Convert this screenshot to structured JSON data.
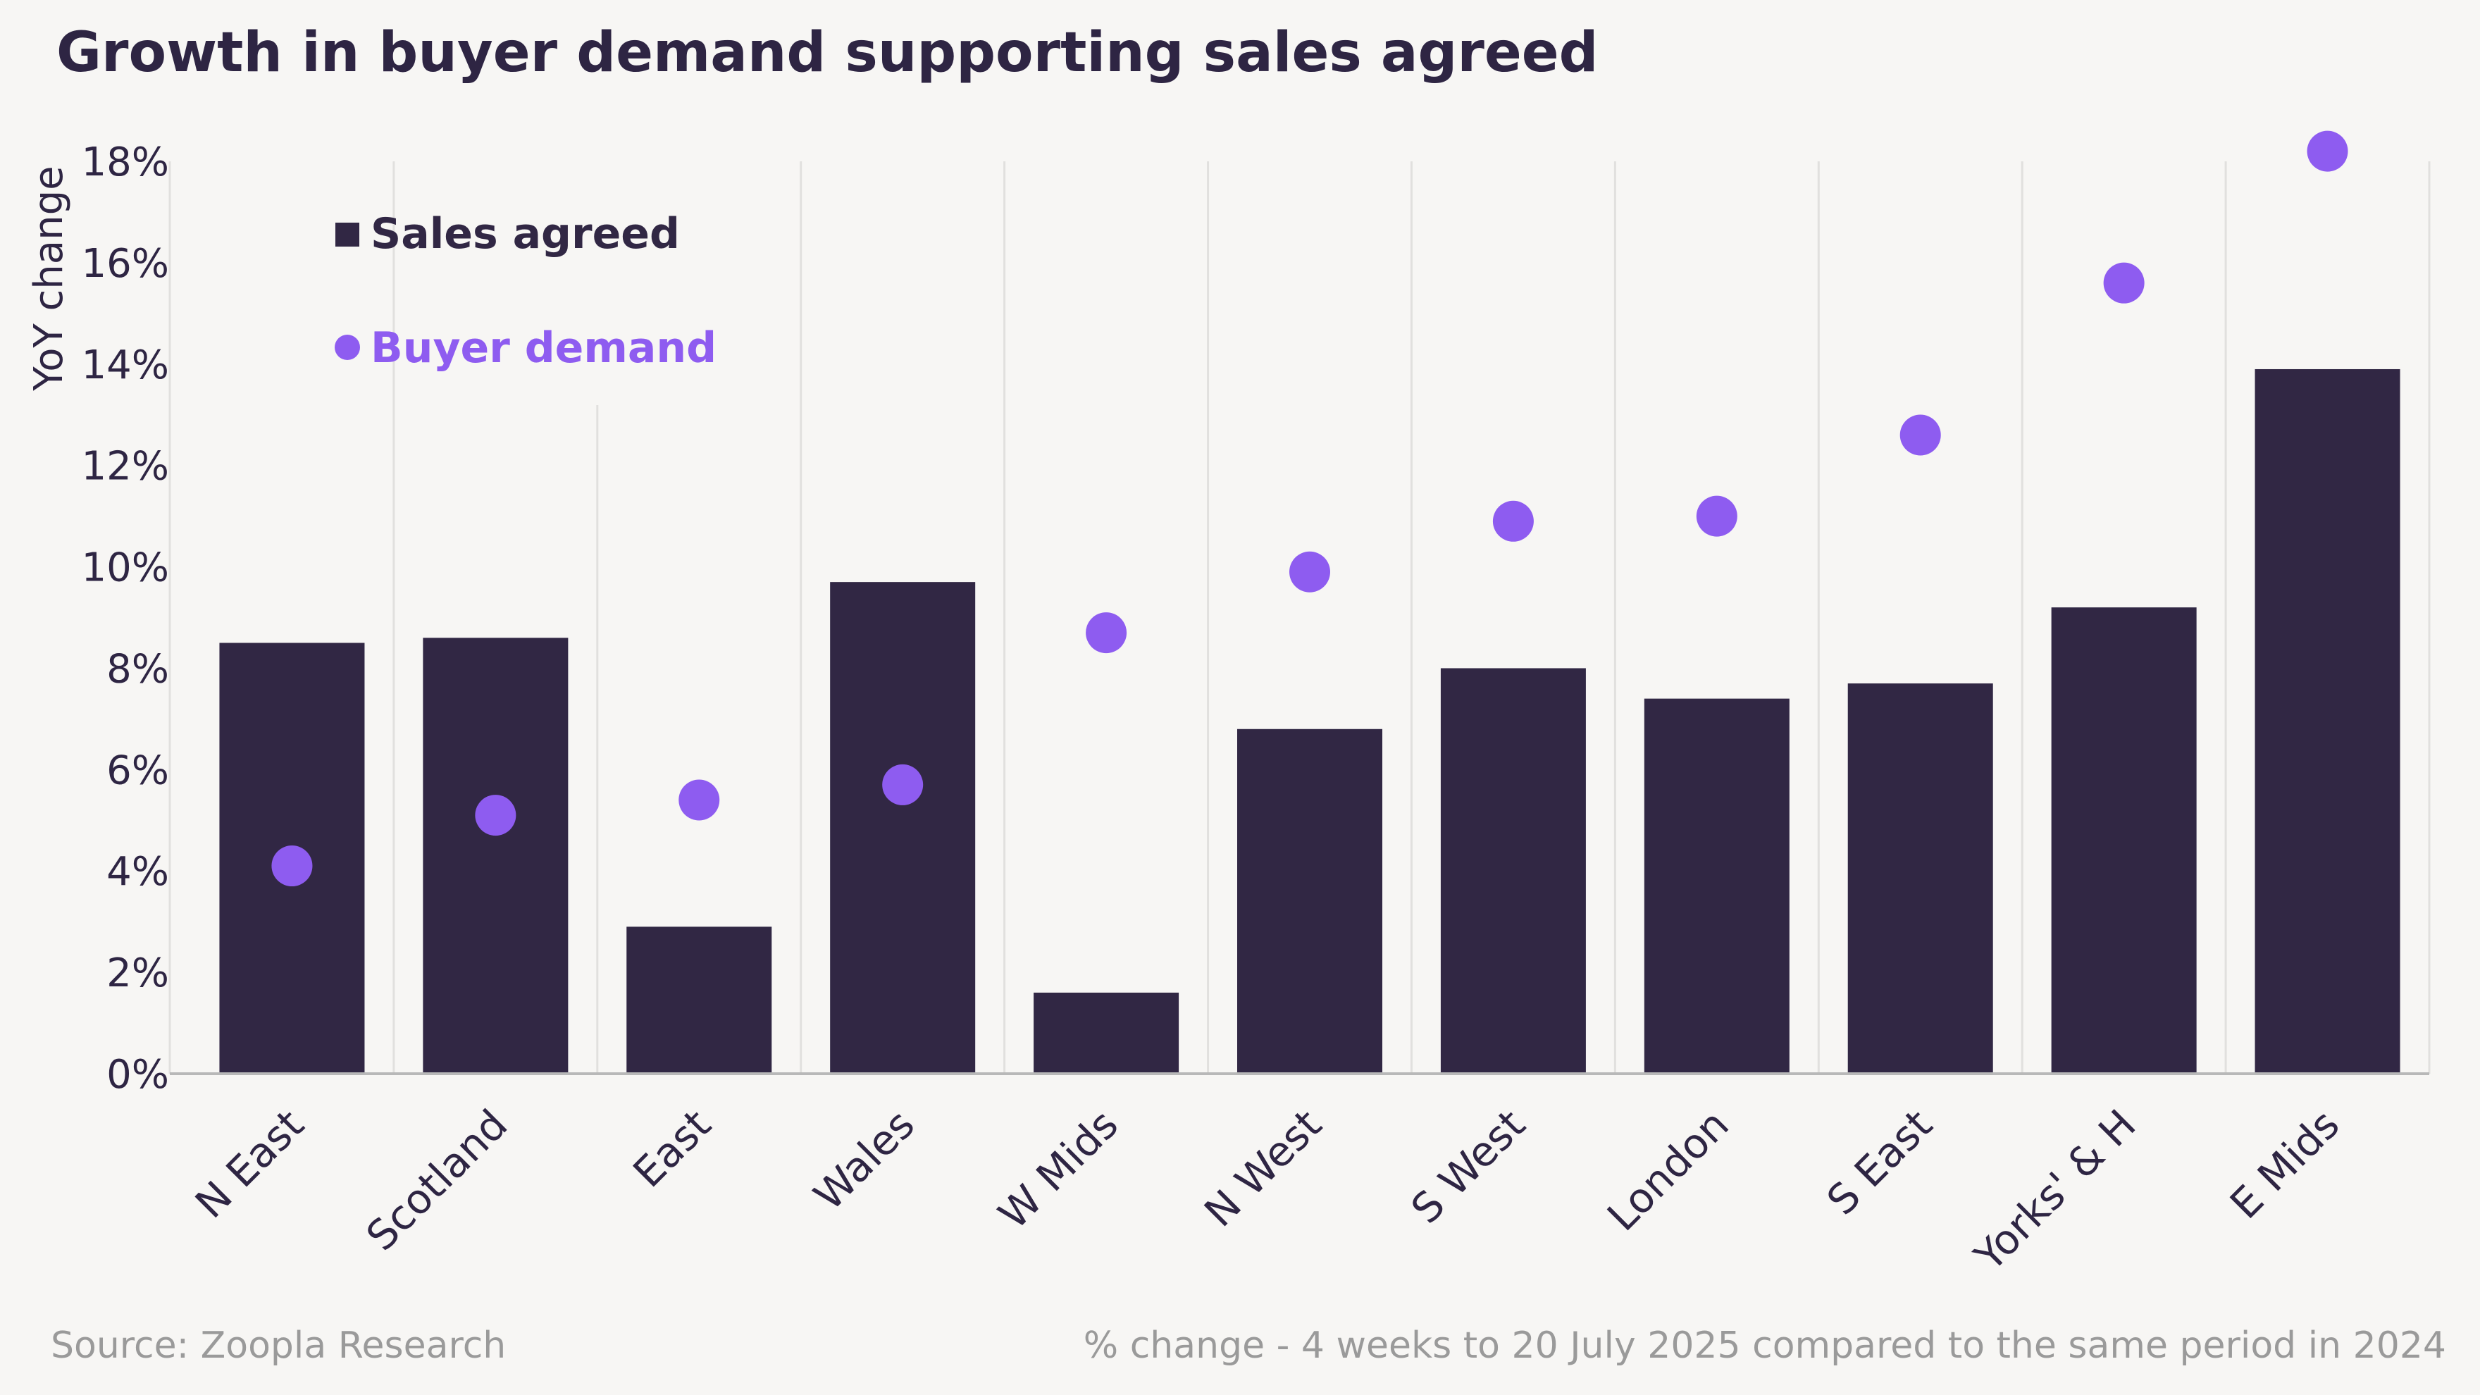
{
  "colors": {
    "background": "#f7f6f4",
    "sales_agreed": "#312744",
    "buyer_demand": "#8e5cf0",
    "grid": "#e1e0de",
    "axis": "#b8b8b8",
    "text": "#2e2543",
    "muted": "#9a9a9a"
  },
  "footer": {
    "source": "Source: Zoopla Research",
    "note": "% change - 4 weeks to 20 July 2025 compared to the same period in 2024"
  },
  "chart_data": {
    "type": "bar",
    "title": "Growth in buyer demand supporting sales agreed",
    "xlabel": "",
    "ylabel": "YoY change",
    "ylim": [
      0,
      18
    ],
    "yticks": [
      0,
      2,
      4,
      6,
      8,
      10,
      12,
      14,
      16,
      18
    ],
    "ytick_labels": [
      "0%",
      "2%",
      "4%",
      "6%",
      "8%",
      "10%",
      "12%",
      "14%",
      "16%",
      "18%"
    ],
    "grid": "vertical",
    "legend_position": "top-left",
    "categories": [
      "N East",
      "Scotland",
      "East",
      "Wales",
      "W Mids",
      "N West",
      "S West",
      "London",
      "S East",
      "Yorks' & H",
      "E Mids"
    ],
    "series": [
      {
        "name": "Sales agreed",
        "mark": "bar",
        "values": [
          8.5,
          8.6,
          2.9,
          9.7,
          1.6,
          6.8,
          8.0,
          7.4,
          7.7,
          9.2,
          13.9
        ]
      },
      {
        "name": "Buyer demand",
        "mark": "dot",
        "values": [
          4.1,
          5.1,
          5.4,
          5.7,
          8.7,
          9.9,
          10.9,
          11.0,
          12.6,
          15.6,
          18.2
        ]
      }
    ]
  }
}
